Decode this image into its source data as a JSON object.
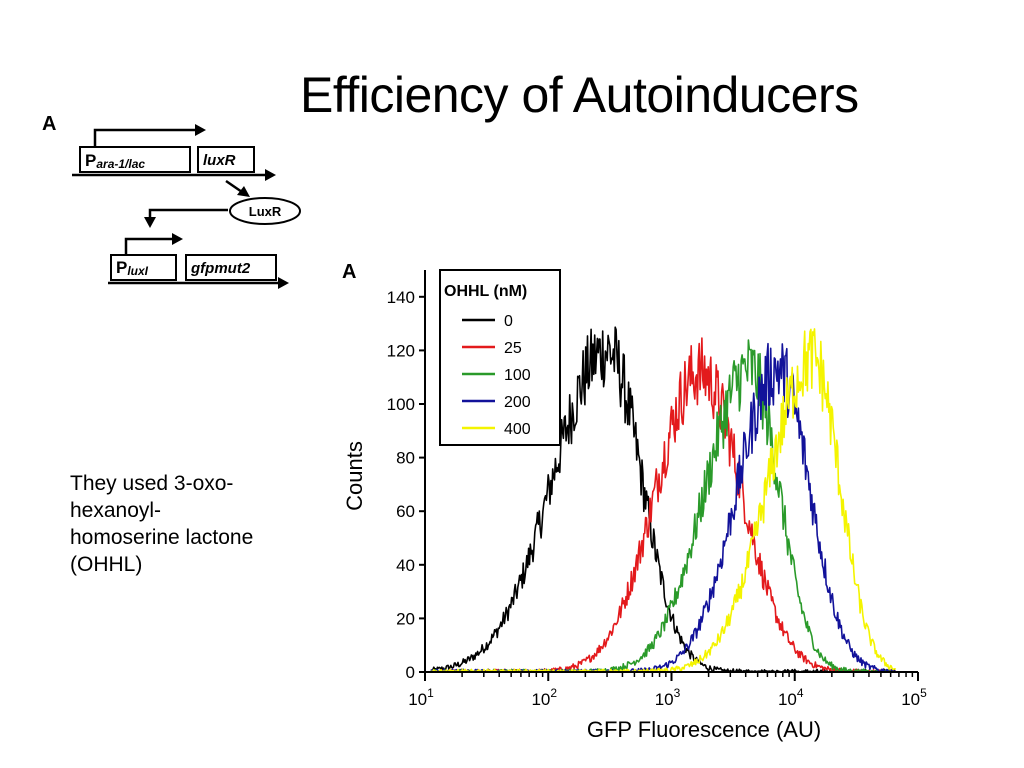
{
  "slide": {
    "title": "Efficiency of Autoinducers",
    "body_lines": [
      "They used 3-oxo-",
      "hexanoyl-",
      "homoserine lactone",
      "(OHHL)"
    ]
  },
  "diagram": {
    "panel_letter": "A",
    "promoter1_main": "P",
    "promoter1_sub": "ara-1/lac",
    "gene1": "luxR",
    "protein": "LuxR",
    "promoter2_main": "P",
    "promoter2_sub": "luxI",
    "gene2": "gfpmut2"
  },
  "chart_data": {
    "type": "line",
    "panel_letter": "A",
    "title": "",
    "xlabel": "GFP Fluorescence (AU)",
    "ylabel": "Counts",
    "x_scale": "log",
    "xlim": [
      10,
      100000
    ],
    "ylim": [
      0,
      150
    ],
    "y_ticks": [
      0,
      20,
      40,
      60,
      80,
      100,
      120,
      140
    ],
    "x_ticks": [
      {
        "value": 10,
        "base": "10",
        "exp": "1"
      },
      {
        "value": 100,
        "base": "10",
        "exp": "2"
      },
      {
        "value": 1000,
        "base": "10",
        "exp": "3"
      },
      {
        "value": 10000,
        "base": "10",
        "exp": "4"
      },
      {
        "value": 100000,
        "base": "10",
        "exp": "5"
      }
    ],
    "legend": {
      "title": "OHHL (nM)",
      "placement": "top-left"
    },
    "grid": false,
    "series": [
      {
        "name": "0",
        "color": "#000000",
        "peak_x": 300,
        "peak_y": 120,
        "spread_left": 0.44,
        "spread_right": 0.28
      },
      {
        "name": "25",
        "color": "#e31a1c",
        "peak_x": 1700,
        "peak_y": 112,
        "spread_left": 0.36,
        "spread_right": 0.34
      },
      {
        "name": "100",
        "color": "#2a9a2a",
        "peak_x": 4300,
        "peak_y": 113,
        "spread_left": 0.36,
        "spread_right": 0.24
      },
      {
        "name": "200",
        "color": "#12129a",
        "peak_x": 7300,
        "peak_y": 113,
        "spread_left": 0.33,
        "spread_right": 0.26
      },
      {
        "name": "400",
        "color": "#f4f400",
        "peak_x": 14000,
        "peak_y": 117,
        "spread_left": 0.36,
        "spread_right": 0.22
      }
    ]
  }
}
